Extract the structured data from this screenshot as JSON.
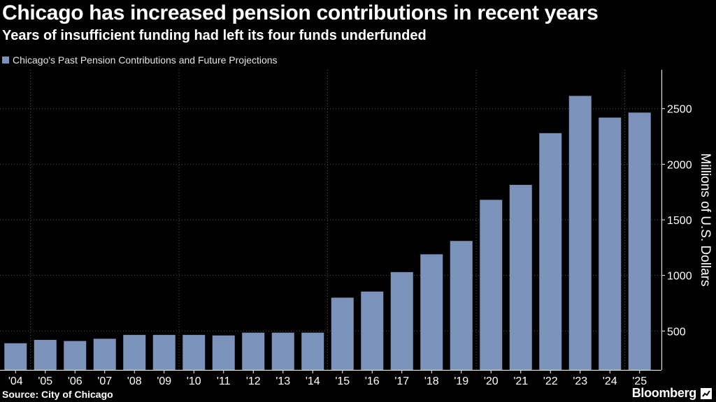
{
  "header": {
    "title": "Chicago has increased pension contributions in recent years",
    "subtitle": "Years of insufficient funding had left its four funds underfunded"
  },
  "footer": {
    "source": "Source: City of Chicago",
    "brand": "Bloomberg"
  },
  "colors": {
    "background": "#000000",
    "bar": "#7b93bb",
    "grid": "#555555",
    "text": "#ffffff"
  },
  "chart_data": {
    "type": "bar",
    "title": "Chicago has increased pension contributions in recent years",
    "subtitle": "Years of insufficient funding had left its four funds underfunded",
    "legend": [
      "Chicago's Past Pension Contributions and Future Projections"
    ],
    "legend_position": "top-left",
    "xlabel": "",
    "ylabel": "Millions of U.S. Dollars",
    "y_axis_side": "right",
    "ylim": [
      150,
      2850
    ],
    "yticks": [
      500,
      1000,
      1500,
      2000,
      2500
    ],
    "grid": true,
    "gridline_years": [
      "'04",
      "'09",
      "'14",
      "'19",
      "'24"
    ],
    "categories": [
      "'04",
      "'05",
      "'06",
      "'07",
      "'08",
      "'09",
      "'10",
      "'11",
      "'12",
      "'13",
      "'14",
      "'15",
      "'16",
      "'17",
      "'18",
      "'19",
      "'20",
      "'21",
      "'22",
      "'23",
      "'24",
      "'25"
    ],
    "series": [
      {
        "name": "Chicago's Past Pension Contributions and Future Projections",
        "values": [
          390,
          420,
          410,
          430,
          465,
          465,
          465,
          460,
          485,
          485,
          485,
          800,
          855,
          1030,
          1190,
          1310,
          1680,
          1815,
          2280,
          2615,
          2420,
          2465
        ]
      }
    ]
  }
}
